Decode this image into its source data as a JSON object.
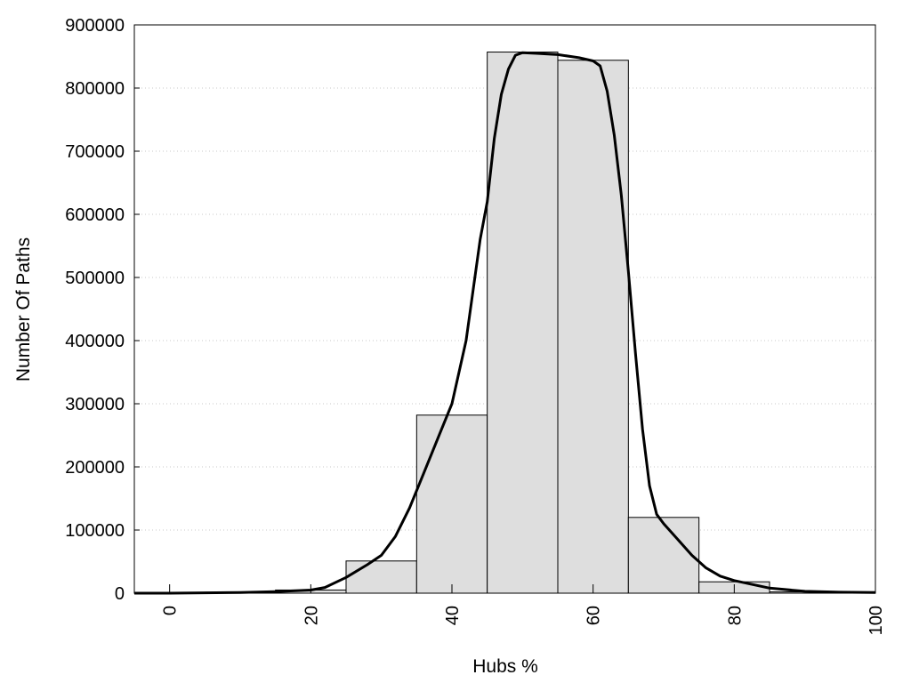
{
  "chart_data": {
    "type": "bar",
    "title": "",
    "xlabel": "Hubs %",
    "ylabel": "Number Of Paths",
    "xlim": [
      -5,
      100
    ],
    "ylim": [
      0,
      900000
    ],
    "grid": "horizontal dotted",
    "legend": "none",
    "x_ticks": [
      "0",
      "20",
      "40",
      "60",
      "80",
      "100"
    ],
    "y_ticks": [
      "0",
      "100000",
      "200000",
      "300000",
      "400000",
      "500000",
      "600000",
      "700000",
      "800000",
      "900000"
    ],
    "bin_width": 10,
    "bins": [
      {
        "x": 0,
        "value": 1000
      },
      {
        "x": 10,
        "value": 1500
      },
      {
        "x": 20,
        "value": 5000
      },
      {
        "x": 30,
        "value": 51000
      },
      {
        "x": 40,
        "value": 282000
      },
      {
        "x": 50,
        "value": 857000
      },
      {
        "x": 60,
        "value": 844000
      },
      {
        "x": 70,
        "value": 120000
      },
      {
        "x": 80,
        "value": 18000
      },
      {
        "x": 90,
        "value": 2000
      }
    ],
    "curve": {
      "x": [
        -5,
        0,
        5,
        10,
        15,
        20,
        22,
        25,
        28,
        30,
        32,
        34,
        36,
        38,
        40,
        42,
        44,
        45,
        46,
        47,
        48,
        49,
        50,
        52,
        55,
        58,
        60,
        61,
        62,
        63,
        64,
        65,
        66,
        67,
        68,
        69,
        70,
        72,
        74,
        76,
        78,
        80,
        85,
        90,
        95,
        100
      ],
      "y": [
        0,
        0,
        500,
        1000,
        2500,
        5000,
        9000,
        25000,
        45000,
        60000,
        90000,
        135000,
        190000,
        245000,
        300000,
        400000,
        560000,
        620000,
        720000,
        790000,
        830000,
        852000,
        856000,
        855000,
        853000,
        848000,
        843000,
        835000,
        795000,
        725000,
        630000,
        510000,
        380000,
        260000,
        170000,
        125000,
        110000,
        85000,
        60000,
        40000,
        27000,
        20000,
        8000,
        3000,
        1500,
        1000
      ]
    },
    "colors": {
      "bar_fill": "#dedede",
      "bar_stroke": "#000000",
      "curve": "#000000",
      "grid": "#c8c8c8"
    }
  }
}
